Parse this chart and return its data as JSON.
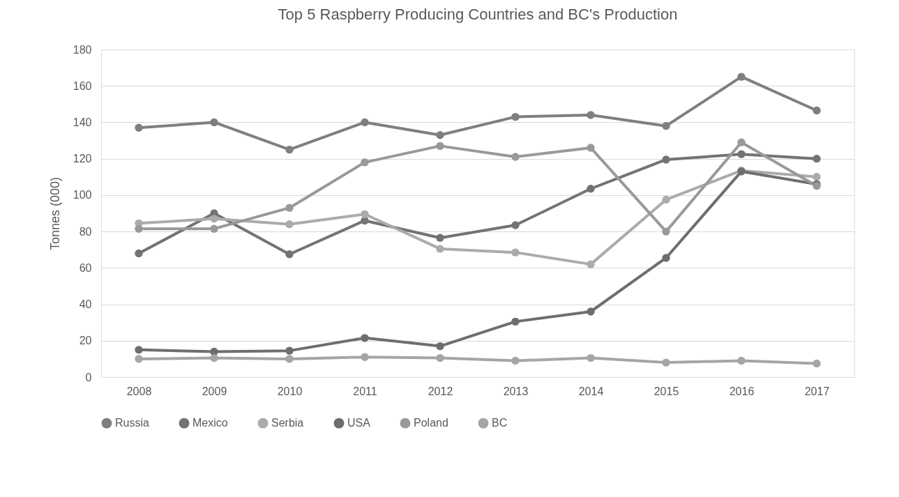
{
  "chart_data": {
    "type": "line",
    "title": "Top 5 Raspberry Producing Countries and BC's Production",
    "ylabel": "Tonnes (000)",
    "categories": [
      "2008",
      "2009",
      "2010",
      "2011",
      "2012",
      "2013",
      "2014",
      "2015",
      "2016",
      "2017"
    ],
    "series": [
      {
        "name": "Russia",
        "color": "#7f7f7f",
        "values": [
          137,
          140,
          125,
          140,
          133,
          143,
          144,
          138,
          165,
          146.5
        ]
      },
      {
        "name": "Mexico",
        "color": "#737373",
        "values": [
          68,
          90,
          67.5,
          86,
          76.5,
          83.5,
          103.5,
          119.5,
          122.5,
          120
        ]
      },
      {
        "name": "Serbia",
        "color": "#ababab",
        "values": [
          84.5,
          87,
          84,
          89.5,
          70.5,
          68.5,
          62,
          97.5,
          113.5,
          110
        ]
      },
      {
        "name": "USA",
        "color": "#6e6e6e",
        "values": [
          15,
          14,
          14.5,
          21.5,
          17,
          30.5,
          36,
          65.5,
          113,
          106
        ]
      },
      {
        "name": "Poland",
        "color": "#999999",
        "values": [
          81.5,
          81.5,
          93,
          118,
          127,
          121,
          126,
          80,
          129,
          105
        ]
      },
      {
        "name": "BC",
        "color": "#a5a5a5",
        "values": [
          10,
          10.5,
          10,
          11,
          10.5,
          9,
          10.5,
          8,
          9,
          7.5
        ]
      }
    ],
    "ylim": [
      0,
      180
    ],
    "yticks": [
      0,
      20,
      40,
      60,
      80,
      100,
      120,
      140,
      160,
      180
    ],
    "grid": "y",
    "legend": "bottom",
    "marker": "circle",
    "line_style": "solid"
  }
}
